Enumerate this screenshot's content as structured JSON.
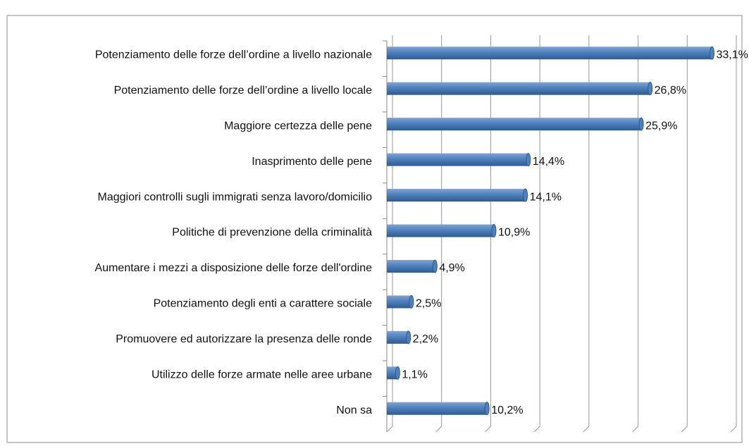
{
  "chart_data": {
    "type": "bar",
    "orientation": "horizontal",
    "categories": [
      "Potenziamento delle forze dell’ordine a livello nazionale",
      "Potenziamento delle forze dell’ordine a livello locale",
      "Maggiore certezza delle pene",
      "Inasprimento delle pene",
      "Maggiori controlli sugli immigrati senza lavoro/domicilio",
      "Politiche di prevenzione della criminalità",
      "Aumentare i mezzi a disposizione delle forze dell'ordine",
      "Potenziamento degli enti a carattere sociale",
      "Promuovere ed autorizzare la presenza delle ronde",
      "Utilizzo delle forze armate nelle aree urbane",
      "Non sa"
    ],
    "values": [
      33.1,
      26.8,
      25.9,
      14.4,
      14.1,
      10.9,
      4.9,
      2.5,
      2.2,
      1.1,
      10.2
    ],
    "value_labels": [
      "33,1%",
      "26,8%",
      "25,9%",
      "14,4%",
      "14,1%",
      "10,9%",
      "4,9%",
      "2,5%",
      "2,2%",
      "1,1%",
      "10,2%"
    ],
    "color": "#4f81bd",
    "xlim": [
      0,
      35
    ],
    "xticks": [
      0,
      5,
      10,
      15,
      20,
      25,
      30,
      35
    ],
    "grid": true
  }
}
